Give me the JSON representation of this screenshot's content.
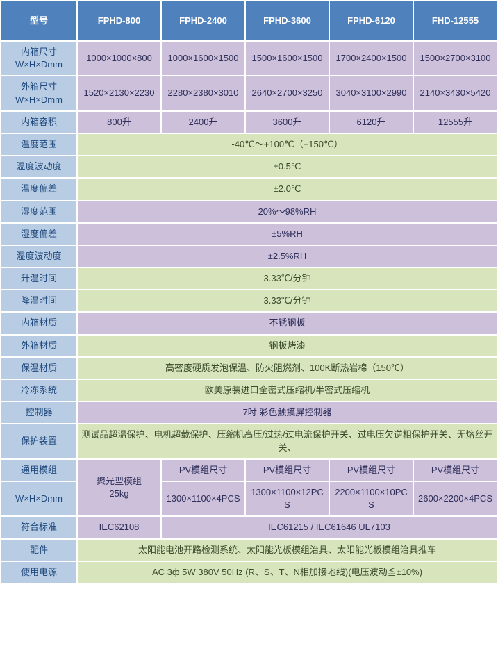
{
  "colors": {
    "header_bg": "#4f81bd",
    "header_fg": "#ffffff",
    "label_bg": "#b8cce4",
    "label_fg": "#1f497d",
    "purple_bg": "#ccc0da",
    "green_bg": "#d7e4bc",
    "border": "#ffffff"
  },
  "headers": [
    "型号",
    "FPHD-800",
    "FPHD-2400",
    "FPHD-3600",
    "FPHD-6120",
    "FHD-12555"
  ],
  "rows": [
    {
      "label": "内箱尺寸\nW×H×Dmm",
      "color": "purple",
      "cells": [
        "1000×1000×800",
        "1000×1600×1500",
        "1500×1600×1500",
        "1700×2400×1500",
        "1500×2700×3100"
      ]
    },
    {
      "label": "外箱尺寸\nW×H×Dmm",
      "color": "purple",
      "cells": [
        "1520×2130×2230",
        "2280×2380×3010",
        "2640×2700×3250",
        "3040×3100×2990",
        "2140×3430×5420"
      ]
    },
    {
      "label": "内箱容积",
      "color": "purple",
      "cells": [
        "800升",
        "2400升",
        "3600升",
        "6120升",
        "12555升"
      ]
    },
    {
      "label": "温度范围",
      "color": "green",
      "span": "-40℃～+100℃（+150℃）"
    },
    {
      "label": "温度波动度",
      "color": "green",
      "span": "±0.5℃"
    },
    {
      "label": "温度偏差",
      "color": "green",
      "span": "±2.0℃"
    },
    {
      "label": "湿度范围",
      "color": "purple",
      "span": "20%～98%RH"
    },
    {
      "label": "湿度偏差",
      "color": "purple",
      "span": "±5%RH"
    },
    {
      "label": "湿度波动度",
      "color": "purple",
      "span": "±2.5%RH"
    },
    {
      "label": "升温时间",
      "color": "green",
      "span": "3.33℃/分钟"
    },
    {
      "label": "降温时间",
      "color": "green",
      "span": "3.33℃/分钟"
    },
    {
      "label": "内箱材质",
      "color": "purple",
      "span": "不锈钢板"
    },
    {
      "label": "外箱材质",
      "color": "green",
      "span": "钢板烤漆"
    },
    {
      "label": "保温材质",
      "color": "green",
      "span": "高密度硬质发泡保温、防火阻燃剂、100K断热岩棉（150℃）"
    },
    {
      "label": "冷冻系统",
      "color": "green",
      "span": "欧美原装进口全密式压缩机/半密式压缩机"
    },
    {
      "label": "控制器",
      "color": "purple",
      "span": "7吋 彩色触摸屏控制器"
    },
    {
      "label": "保护装置",
      "color": "green",
      "span": "测试品超温保护、电机超载保护、压缩机高压/过热/过电流保护开关、过电压欠逆相保护开关、无熔丝开关、"
    }
  ],
  "module": {
    "label_top": "通用模组",
    "label_bottom": "W×H×Dmm",
    "col1": "聚光型模组\n25kg",
    "top": [
      "PV模组尺寸",
      "PV模组尺寸",
      "PV模组尺寸",
      "PV模组尺寸"
    ],
    "bottom": [
      "1300×1100×4PCS",
      "1300×1100×12PCS",
      "2200×1100×10PCS",
      "2600×2200×4PCS"
    ]
  },
  "standard": {
    "label": "符合标准",
    "col1": "IEC62108",
    "rest": "IEC61215 / IEC61646 UL7103"
  },
  "accessories": {
    "label": "配件",
    "value": "太阳能电池开路检测系统、太阳能光板模组治具、太阳能光板模组治具推车"
  },
  "power": {
    "label": "使用电源",
    "value": "AC 3ф 5W 380V 50Hz (R、S、T、N相加接地线)(电压波动≦±10%)"
  }
}
